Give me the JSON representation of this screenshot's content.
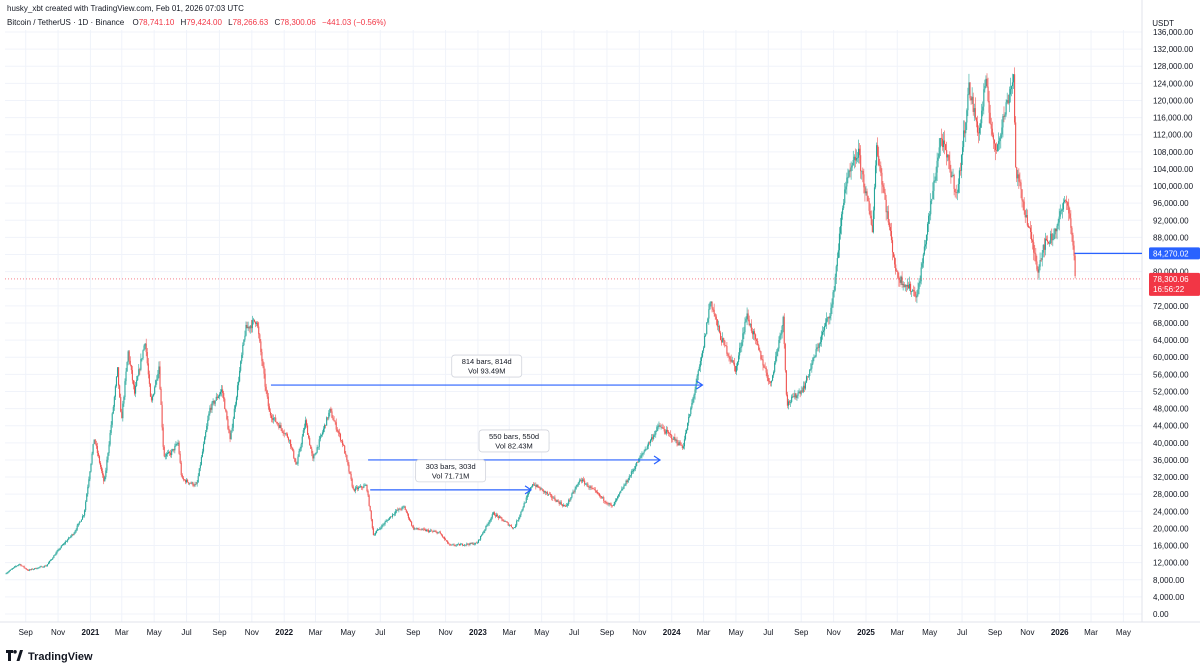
{
  "header": {
    "credit": "husky_xbt created with TradingView.com, Feb 01, 2026 07:03 UTC",
    "symbol": "Bitcoin / TetherUS · 1D · Binance",
    "open_label": "O",
    "open": "78,741.10",
    "high_label": "H",
    "high": "79,424.00",
    "low_label": "L",
    "low": "78,266.63",
    "close_label": "C",
    "close": "78,300.06",
    "change": "−441.03 (−0.56%)",
    "currency": "USDT"
  },
  "footer": {
    "brand": "TradingView",
    "logo_icon": "tradingview-logo-icon"
  },
  "colors": {
    "up": "#26a69a",
    "down": "#ef5350",
    "measure": "#2962ff",
    "price_line": "#f23645",
    "level": "#2962ff"
  },
  "chart_data": {
    "type": "candlestick",
    "title": "",
    "xlabel": "",
    "ylabel": "",
    "ylim": [
      0,
      136000
    ],
    "y_ticks": [
      0,
      4000,
      8000,
      12000,
      16000,
      20000,
      24000,
      28000,
      32000,
      36000,
      40000,
      44000,
      48000,
      52000,
      56000,
      60000,
      64000,
      68000,
      72000,
      76000,
      80000,
      84000,
      88000,
      92000,
      96000,
      100000,
      104000,
      108000,
      112000,
      116000,
      120000,
      124000,
      128000,
      132000,
      136000
    ],
    "y_tick_labels": [
      "0.00",
      "4,000.00",
      "8,000.00",
      "12,000.00",
      "16,000.00",
      "20,000.00",
      "24,000.00",
      "28,000.00",
      "32,000.00",
      "36,000.00",
      "40,000.00",
      "44,000.00",
      "48,000.00",
      "52,000.00",
      "56,000.00",
      "60,000.00",
      "64,000.00",
      "68,000.00",
      "72,000.00",
      "76,000.00",
      "80,000.00",
      "84,000.00",
      "88,000.00",
      "92,000.00",
      "96,000.00",
      "100,000.00",
      "104,000.00",
      "108,000.00",
      "112,000.00",
      "116,000.00",
      "120,000.00",
      "124,000.00",
      "128,000.00",
      "132,000.00",
      "136,000.00"
    ],
    "xlim": [
      "2020-07-24",
      "2026-06-05"
    ],
    "x_ticks": [
      {
        "date": "2020-09-01",
        "label": "Sep"
      },
      {
        "date": "2020-11-01",
        "label": "Nov"
      },
      {
        "date": "2021-01-01",
        "label": "2021",
        "year": true
      },
      {
        "date": "2021-03-01",
        "label": "Mar"
      },
      {
        "date": "2021-05-01",
        "label": "May"
      },
      {
        "date": "2021-07-01",
        "label": "Jul"
      },
      {
        "date": "2021-09-01",
        "label": "Sep"
      },
      {
        "date": "2021-11-01",
        "label": "Nov"
      },
      {
        "date": "2022-01-01",
        "label": "2022",
        "year": true
      },
      {
        "date": "2022-03-01",
        "label": "Mar"
      },
      {
        "date": "2022-05-01",
        "label": "May"
      },
      {
        "date": "2022-07-01",
        "label": "Jul"
      },
      {
        "date": "2022-09-01",
        "label": "Sep"
      },
      {
        "date": "2022-11-01",
        "label": "Nov"
      },
      {
        "date": "2023-01-01",
        "label": "2023",
        "year": true
      },
      {
        "date": "2023-03-01",
        "label": "Mar"
      },
      {
        "date": "2023-05-01",
        "label": "May"
      },
      {
        "date": "2023-07-01",
        "label": "Jul"
      },
      {
        "date": "2023-09-01",
        "label": "Sep"
      },
      {
        "date": "2023-11-01",
        "label": "Nov"
      },
      {
        "date": "2024-01-01",
        "label": "2024",
        "year": true
      },
      {
        "date": "2024-03-01",
        "label": "Mar"
      },
      {
        "date": "2024-05-01",
        "label": "May"
      },
      {
        "date": "2024-07-01",
        "label": "Jul"
      },
      {
        "date": "2024-09-01",
        "label": "Sep"
      },
      {
        "date": "2024-11-01",
        "label": "Nov"
      },
      {
        "date": "2025-01-01",
        "label": "2025",
        "year": true
      },
      {
        "date": "2025-03-01",
        "label": "Mar"
      },
      {
        "date": "2025-05-01",
        "label": "May"
      },
      {
        "date": "2025-07-01",
        "label": "Jul"
      },
      {
        "date": "2025-09-01",
        "label": "Sep"
      },
      {
        "date": "2025-11-01",
        "label": "Nov"
      },
      {
        "date": "2026-01-01",
        "label": "2026",
        "year": true
      },
      {
        "date": "2026-03-01",
        "label": "Mar"
      },
      {
        "date": "2026-05-01",
        "label": "May"
      }
    ],
    "price_path": [
      [
        "2020-07-24",
        9400
      ],
      [
        "2020-08-20",
        11700
      ],
      [
        "2020-09-05",
        10200
      ],
      [
        "2020-10-10",
        11300
      ],
      [
        "2020-11-05",
        15500
      ],
      [
        "2020-12-01",
        19000
      ],
      [
        "2020-12-20",
        23500
      ],
      [
        "2021-01-08",
        41000
      ],
      [
        "2021-01-27",
        30500
      ],
      [
        "2021-02-21",
        57000
      ],
      [
        "2021-02-28",
        45000
      ],
      [
        "2021-03-13",
        61200
      ],
      [
        "2021-03-25",
        51500
      ],
      [
        "2021-04-14",
        64000
      ],
      [
        "2021-04-25",
        49000
      ],
      [
        "2021-05-10",
        58000
      ],
      [
        "2021-05-19",
        37000
      ],
      [
        "2021-06-01",
        37500
      ],
      [
        "2021-06-15",
        40000
      ],
      [
        "2021-06-22",
        31500
      ],
      [
        "2021-07-20",
        30000
      ],
      [
        "2021-08-14",
        48000
      ],
      [
        "2021-09-06",
        52500
      ],
      [
        "2021-09-21",
        40500
      ],
      [
        "2021-10-20",
        66500
      ],
      [
        "2021-11-10",
        68800
      ],
      [
        "2021-11-26",
        53500
      ],
      [
        "2021-12-04",
        47000
      ],
      [
        "2022-01-10",
        41000
      ],
      [
        "2022-01-24",
        34500
      ],
      [
        "2022-02-10",
        45000
      ],
      [
        "2022-02-24",
        36000
      ],
      [
        "2022-03-28",
        47500
      ],
      [
        "2022-04-22",
        39500
      ],
      [
        "2022-05-11",
        29000
      ],
      [
        "2022-06-05",
        30000
      ],
      [
        "2022-06-18",
        18500
      ],
      [
        "2022-07-30",
        24000
      ],
      [
        "2022-08-15",
        25000
      ],
      [
        "2022-09-01",
        20000
      ],
      [
        "2022-10-20",
        19000
      ],
      [
        "2022-11-09",
        16000
      ],
      [
        "2022-12-30",
        16500
      ],
      [
        "2023-01-30",
        23500
      ],
      [
        "2023-03-10",
        20000
      ],
      [
        "2023-04-14",
        30500
      ],
      [
        "2023-06-15",
        25000
      ],
      [
        "2023-07-13",
        31500
      ],
      [
        "2023-09-11",
        25000
      ],
      [
        "2023-10-24",
        34500
      ],
      [
        "2023-12-08",
        44000
      ],
      [
        "2024-01-22",
        39000
      ],
      [
        "2024-02-28",
        61000
      ],
      [
        "2024-03-14",
        73500
      ],
      [
        "2024-04-01",
        65000
      ],
      [
        "2024-05-01",
        57000
      ],
      [
        "2024-05-21",
        70000
      ],
      [
        "2024-07-05",
        53500
      ],
      [
        "2024-07-29",
        69000
      ],
      [
        "2024-08-05",
        49000
      ],
      [
        "2024-09-06",
        53000
      ],
      [
        "2024-10-29",
        72000
      ],
      [
        "2024-11-22",
        99500
      ],
      [
        "2024-12-17",
        108000
      ],
      [
        "2025-01-13",
        90000
      ],
      [
        "2025-01-21",
        109500
      ],
      [
        "2025-02-28",
        79000
      ],
      [
        "2025-04-08",
        74500
      ],
      [
        "2025-05-22",
        111500
      ],
      [
        "2025-06-22",
        98000
      ],
      [
        "2025-07-14",
        123000
      ],
      [
        "2025-08-02",
        112000
      ],
      [
        "2025-08-14",
        124500
      ],
      [
        "2025-09-01",
        107500
      ],
      [
        "2025-10-06",
        126000
      ],
      [
        "2025-10-10",
        104000
      ],
      [
        "2025-11-21",
        80500
      ],
      [
        "2025-12-01",
        86000
      ],
      [
        "2025-12-20",
        88500
      ],
      [
        "2026-01-14",
        97500
      ],
      [
        "2026-01-26",
        86500
      ],
      [
        "2026-01-31",
        78300
      ]
    ],
    "measurements": [
      {
        "from": "2021-12-07",
        "to": "2024-02-28",
        "price": 53500,
        "label1": "814 bars, 814d",
        "label2": "Vol 93.49M"
      },
      {
        "from": "2022-06-08",
        "to": "2023-12-10",
        "price": 36000,
        "label1": "550 bars, 550d",
        "label2": "Vol 82.43M"
      },
      {
        "from": "2022-06-12",
        "to": "2023-04-11",
        "price": 29000,
        "label1": "303 bars, 303d",
        "label2": "Vol 71.71M"
      }
    ],
    "horizontal_level": {
      "from": "2026-01-29",
      "to": "2026-06-05",
      "price": 84270.02,
      "label": "84,270.02"
    },
    "last_price": {
      "price": 78300.06,
      "label": "78,300.06",
      "countdown": "16:56:22"
    }
  }
}
